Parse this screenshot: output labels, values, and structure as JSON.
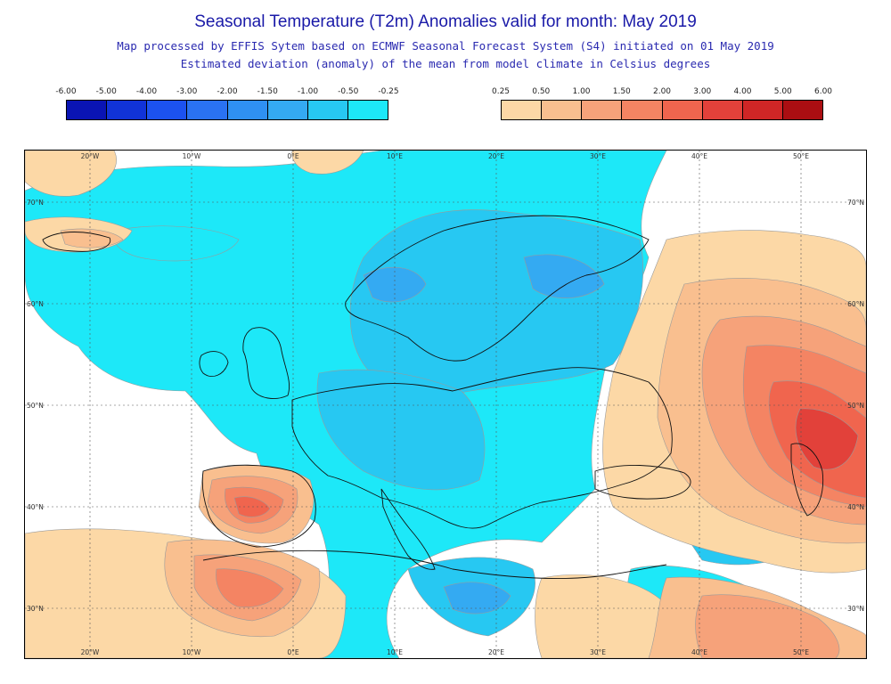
{
  "title": "Seasonal Temperature (T2m) Anomalies valid for month: May 2019",
  "subtitle1": "Map processed by EFFIS Sytem based on ECMWF Seasonal Forecast System (S4) initiated on 01 May 2019",
  "subtitle2": "Estimated deviation (anomaly) of the mean from model climate in Celsius degrees",
  "legend_negative": {
    "ticks": [
      "-6.00",
      "-5.00",
      "-4.00",
      "-3.00",
      "-2.00",
      "-1.50",
      "-1.00",
      "-0.50",
      "-0.25"
    ],
    "colors": [
      "#0a14b4",
      "#1133d8",
      "#1c52f0",
      "#2a72f2",
      "#2f90f2",
      "#34aaf2",
      "#27c8f2",
      "#1de8f8"
    ]
  },
  "legend_positive": {
    "ticks": [
      "0.25",
      "0.50",
      "1.00",
      "1.50",
      "2.00",
      "3.00",
      "4.00",
      "5.00",
      "6.00"
    ],
    "colors": [
      "#fcd8a6",
      "#f9bf8f",
      "#f6a27a",
      "#f48463",
      "#f0654e",
      "#e2413a",
      "#cf2626",
      "#ab0e12"
    ]
  },
  "map": {
    "lon_labels": [
      "20°W",
      "10°W",
      "0°E",
      "10°E",
      "20°E",
      "30°E",
      "40°E",
      "50°E"
    ],
    "lat_labels": [
      "70°N",
      "60°N",
      "50°N",
      "40°N",
      "30°N"
    ],
    "colors": {
      "c050": "#1de8f8",
      "c100": "#27c8f2",
      "c150": "#34aaf2",
      "c200": "#2f90f2",
      "w025": "#fcd8a6",
      "w050": "#f9bf8f",
      "w100": "#f6a27a",
      "w150": "#f48463",
      "w200": "#f0654e",
      "w300": "#e2413a",
      "w400": "#cf2626"
    }
  }
}
